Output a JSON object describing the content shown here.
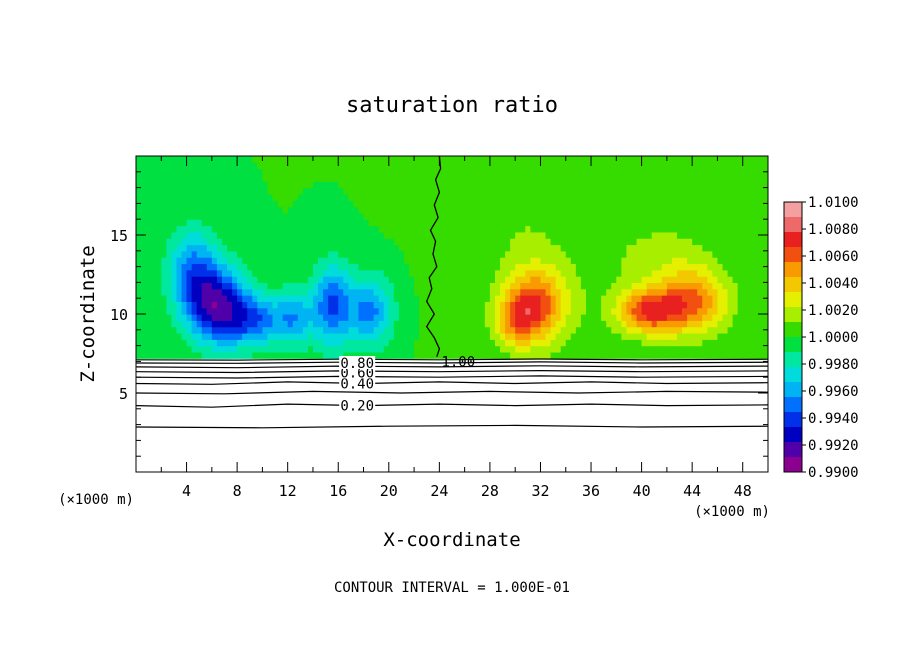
{
  "chart_data": {
    "type": "heatmap",
    "title": "saturation ratio",
    "xlabel": "X-coordinate",
    "ylabel": "Z-coordinate",
    "x_unit_left": "(×1000 m)",
    "x_unit_right": "(×1000 m)",
    "xlim": [
      0,
      50
    ],
    "ylim": [
      0,
      20
    ],
    "x_ticks": [
      4,
      8,
      12,
      16,
      20,
      24,
      28,
      32,
      36,
      40,
      44,
      48
    ],
    "y_ticks": [
      5,
      10,
      15
    ],
    "footer": "CONTOUR INTERVAL = 1.000E-01",
    "colorbar": {
      "min": 0.99,
      "max": 1.01,
      "labels": [
        "1.0100",
        "1.0080",
        "1.0060",
        "1.0040",
        "1.0020",
        "1.0000",
        "0.9980",
        "0.9960",
        "0.9940",
        "0.9920",
        "0.9900"
      ],
      "colors": [
        "#f4a0a0",
        "#ee6a6a",
        "#e82020",
        "#f25010",
        "#f89a00",
        "#f4c800",
        "#e4f000",
        "#a8ee00",
        "#36dc00",
        "#00e040",
        "#00e8a0",
        "#00dcdc",
        "#00b4f4",
        "#0070ff",
        "#0030e8",
        "#0000c0",
        "#5000a8",
        "#8c0090"
      ]
    },
    "field_blobs": [
      {
        "x": 6.5,
        "z": 10.5,
        "sx": 2.4,
        "sz": 2.4,
        "a": -0.0078
      },
      {
        "x": 4.5,
        "z": 12.8,
        "sx": 2.0,
        "sz": 2.6,
        "a": -0.0045
      },
      {
        "x": 9.5,
        "z": 9.6,
        "sx": 2.0,
        "sz": 1.6,
        "a": -0.0045
      },
      {
        "x": 12.5,
        "z": 9.8,
        "sx": 1.6,
        "sz": 1.8,
        "a": -0.004
      },
      {
        "x": 15.5,
        "z": 10.6,
        "sx": 1.5,
        "sz": 2.6,
        "a": -0.0055
      },
      {
        "x": 18.5,
        "z": 10.2,
        "sx": 1.8,
        "sz": 2.2,
        "a": -0.0048
      },
      {
        "x": 31.5,
        "z": 10.6,
        "sx": 2.5,
        "sz": 2.4,
        "a": 0.0062
      },
      {
        "x": 30.0,
        "z": 9.5,
        "sx": 1.6,
        "sz": 1.5,
        "a": 0.003
      },
      {
        "x": 40.5,
        "z": 10.2,
        "sx": 2.4,
        "sz": 1.4,
        "a": 0.006
      },
      {
        "x": 44.0,
        "z": 10.8,
        "sx": 2.8,
        "sz": 2.0,
        "a": 0.0055
      },
      {
        "x": 42.0,
        "z": 13.8,
        "sx": 4.0,
        "sz": 2.0,
        "a": 0.0012
      },
      {
        "x": 30.0,
        "z": 16.0,
        "sx": 5.0,
        "sz": 2.5,
        "a": 0.0008
      },
      {
        "x": 36.0,
        "z": 12.0,
        "sx": 9.0,
        "sz": 5.0,
        "a": 0.0006
      }
    ],
    "cloud_base_z": 7.2,
    "unity_contour": {
      "label": "1.00",
      "label_x": 25.5,
      "label_z": 7.0,
      "points": [
        [
          23.8,
          7.3
        ],
        [
          24.0,
          7.8
        ],
        [
          23.6,
          8.5
        ],
        [
          23.0,
          9.2
        ],
        [
          23.6,
          10.0
        ],
        [
          23.0,
          10.8
        ],
        [
          23.4,
          11.6
        ],
        [
          23.2,
          12.3
        ],
        [
          23.8,
          13.0
        ],
        [
          23.5,
          13.8
        ],
        [
          23.7,
          14.6
        ],
        [
          23.3,
          15.3
        ],
        [
          23.9,
          16.1
        ],
        [
          23.6,
          16.9
        ],
        [
          24.0,
          17.7
        ],
        [
          23.7,
          18.5
        ],
        [
          24.1,
          19.2
        ],
        [
          24.0,
          20.0
        ]
      ]
    },
    "contours": [
      {
        "level": 0.2,
        "label": "0.20",
        "label_x": 17.5,
        "label_z": 4.2,
        "points": [
          [
            0,
            4.2
          ],
          [
            6,
            4.1
          ],
          [
            12,
            4.3
          ],
          [
            18,
            4.2
          ],
          [
            24,
            4.3
          ],
          [
            30,
            4.2
          ],
          [
            36,
            4.3
          ],
          [
            42,
            4.2
          ],
          [
            50,
            4.25
          ]
        ]
      },
      {
        "level": 0.3,
        "label": "",
        "points": [
          [
            0,
            5.0
          ],
          [
            7,
            4.95
          ],
          [
            14,
            5.1
          ],
          [
            21,
            5.0
          ],
          [
            28,
            5.1
          ],
          [
            35,
            5.0
          ],
          [
            42,
            5.1
          ],
          [
            50,
            5.05
          ]
        ]
      },
      {
        "level": 0.4,
        "label": "0.40",
        "label_x": 17.5,
        "label_z": 5.6,
        "points": [
          [
            0,
            5.6
          ],
          [
            6,
            5.55
          ],
          [
            12,
            5.7
          ],
          [
            18,
            5.6
          ],
          [
            24,
            5.7
          ],
          [
            30,
            5.6
          ],
          [
            36,
            5.7
          ],
          [
            42,
            5.6
          ],
          [
            50,
            5.65
          ]
        ]
      },
      {
        "level": 0.5,
        "label": "",
        "points": [
          [
            0,
            6.0
          ],
          [
            8,
            5.95
          ],
          [
            16,
            6.05
          ],
          [
            24,
            6.0
          ],
          [
            32,
            6.08
          ],
          [
            40,
            6.0
          ],
          [
            50,
            6.05
          ]
        ]
      },
      {
        "level": 0.6,
        "label": "0.60",
        "label_x": 17.5,
        "label_z": 6.3,
        "points": [
          [
            0,
            6.35
          ],
          [
            8,
            6.3
          ],
          [
            16,
            6.4
          ],
          [
            24,
            6.35
          ],
          [
            32,
            6.42
          ],
          [
            40,
            6.35
          ],
          [
            50,
            6.4
          ]
        ]
      },
      {
        "level": 0.7,
        "label": "",
        "points": [
          [
            0,
            6.65
          ],
          [
            8,
            6.6
          ],
          [
            16,
            6.7
          ],
          [
            24,
            6.65
          ],
          [
            32,
            6.72
          ],
          [
            40,
            6.65
          ],
          [
            50,
            6.7
          ]
        ]
      },
      {
        "level": 0.8,
        "label": "0.80",
        "label_x": 17.5,
        "label_z": 6.9,
        "points": [
          [
            0,
            6.9
          ],
          [
            8,
            6.88
          ],
          [
            16,
            6.95
          ],
          [
            24,
            6.9
          ],
          [
            32,
            6.97
          ],
          [
            40,
            6.9
          ],
          [
            50,
            6.95
          ]
        ]
      },
      {
        "level": 0.9,
        "label": "",
        "points": [
          [
            0,
            7.1
          ],
          [
            8,
            7.08
          ],
          [
            16,
            7.14
          ],
          [
            24,
            7.1
          ],
          [
            32,
            7.15
          ],
          [
            40,
            7.1
          ],
          [
            50,
            7.14
          ]
        ]
      },
      {
        "level": 0.1,
        "label": "",
        "points": [
          [
            0,
            2.85
          ],
          [
            10,
            2.8
          ],
          [
            20,
            2.9
          ],
          [
            30,
            2.95
          ],
          [
            40,
            2.85
          ],
          [
            50,
            2.9
          ]
        ]
      }
    ]
  }
}
